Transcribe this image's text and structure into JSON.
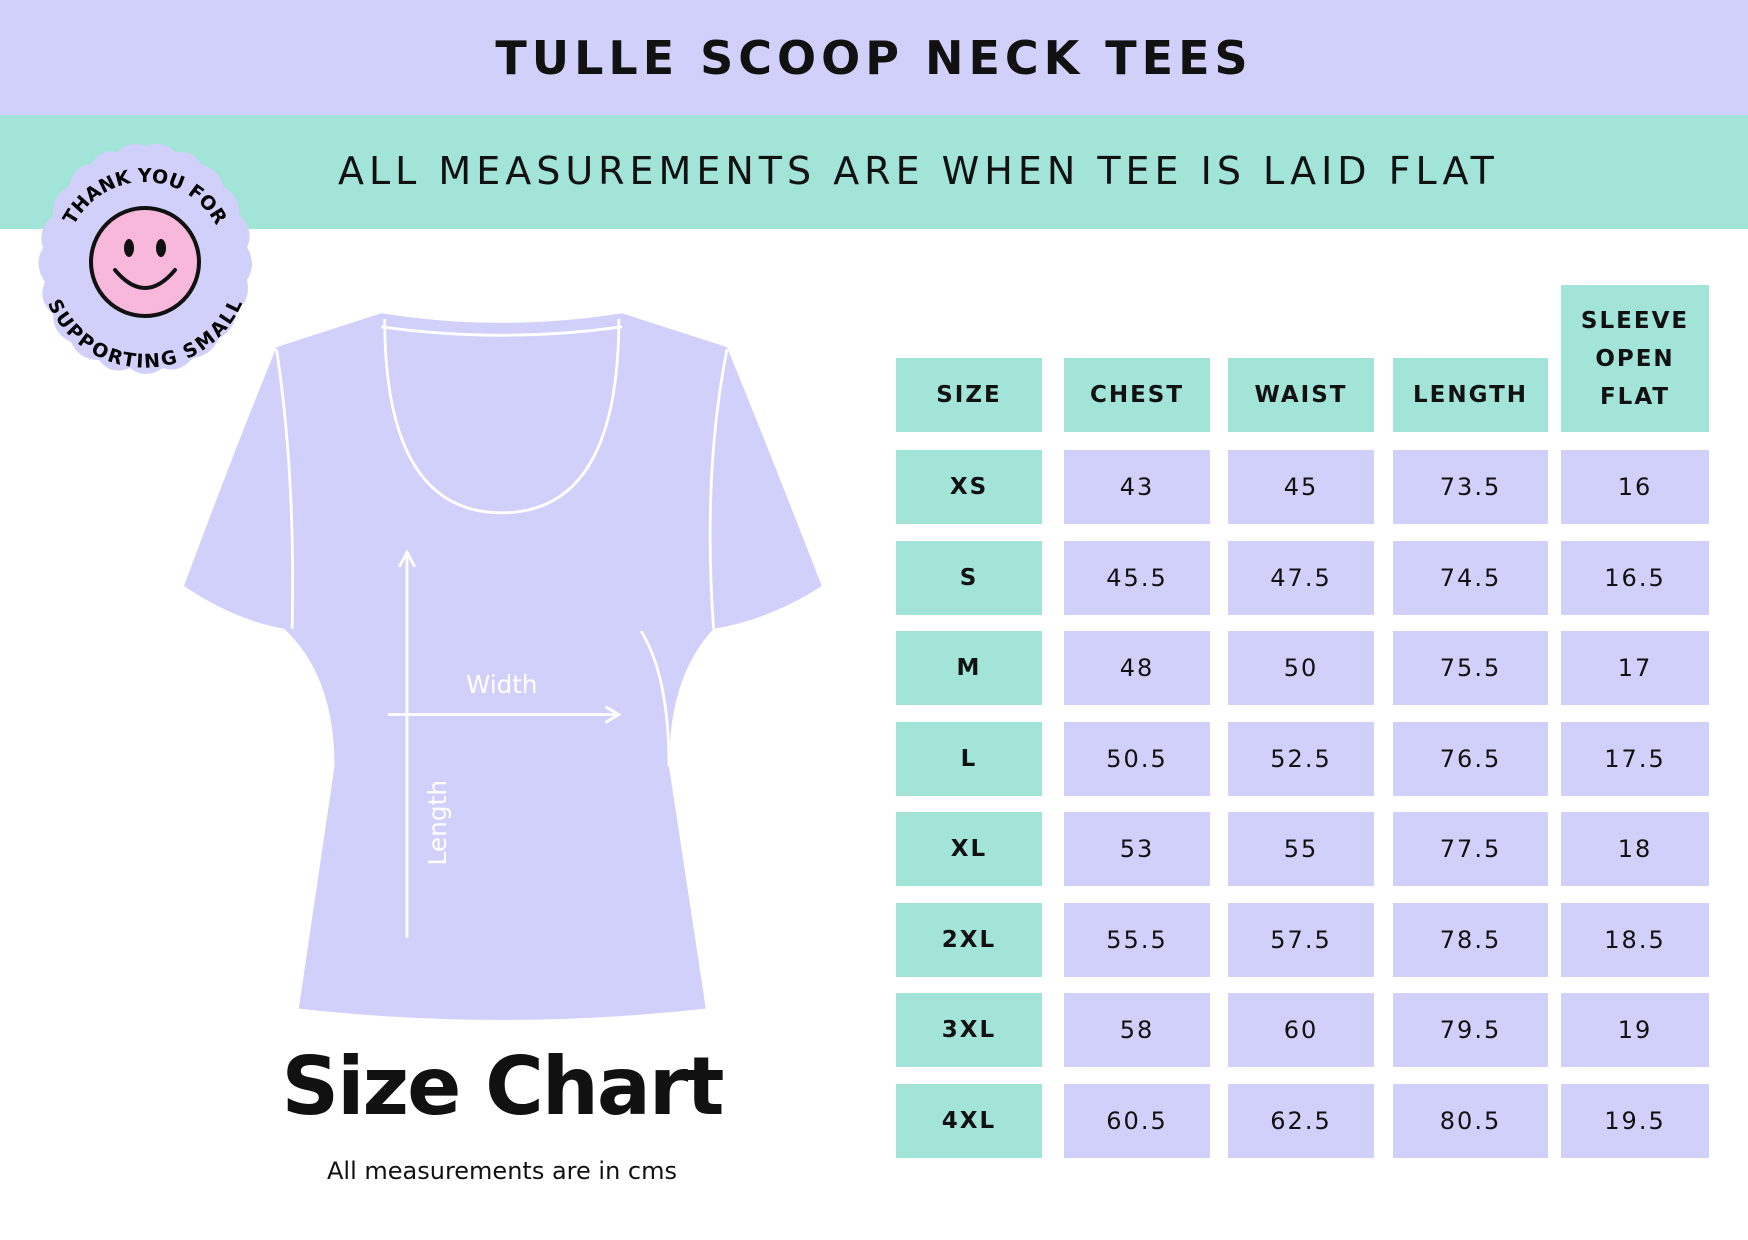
{
  "header": {
    "title": "TULLE SCOOP NECK TEES",
    "subtitle": "ALL MEASUREMENTS ARE WHEN TEE IS LAID FLAT"
  },
  "badge": {
    "top": "THANK YOU FOR",
    "bottom": "SUPPORTING SMALL"
  },
  "diagram": {
    "width_label": "Width",
    "length_label": "Length"
  },
  "footer": {
    "title": "Size Chart",
    "note": "All measurements are in cms"
  },
  "table": {
    "columns": [
      "SIZE",
      "CHEST",
      "WAIST",
      "LENGTH",
      "SLEEVE OPEN FLAT"
    ],
    "rows": [
      [
        "XS",
        "43",
        "45",
        "73.5",
        "16"
      ],
      [
        "S",
        "45.5",
        "47.5",
        "74.5",
        "16.5"
      ],
      [
        "M",
        "48",
        "50",
        "75.5",
        "17"
      ],
      [
        "L",
        "50.5",
        "52.5",
        "76.5",
        "17.5"
      ],
      [
        "XL",
        "53",
        "55",
        "77.5",
        "18"
      ],
      [
        "2XL",
        "55.5",
        "57.5",
        "78.5",
        "18.5"
      ],
      [
        "3XL",
        "58",
        "60",
        "79.5",
        "19"
      ],
      [
        "4XL",
        "60.5",
        "62.5",
        "80.5",
        "19.5"
      ]
    ]
  }
}
